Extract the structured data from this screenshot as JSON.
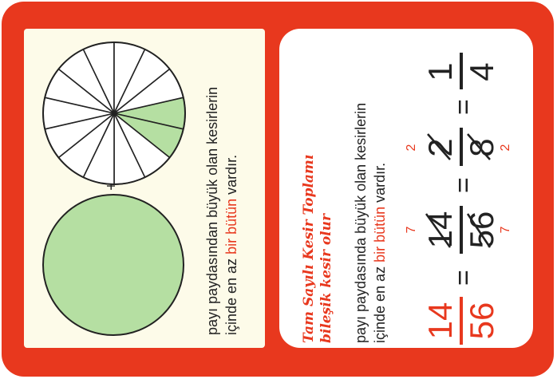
{
  "colors": {
    "frame": "#e8381e",
    "green": "#b5dfa2",
    "red": "#e8381e",
    "text": "#222222"
  },
  "left_panel": {
    "line1": "payı paydasından büyük olan kesirlerin",
    "line2_a": "içinde en az ",
    "line2_b": "bir bütün",
    "line2_c": " vardır.",
    "plus_sign": "+",
    "fraction_pie": {
      "slices_total": 14,
      "slices_shaded": 2
    }
  },
  "right_panel": {
    "title_line1": "Tam Sayılı Kesir Toplamı",
    "title_line2": "bileşik kesir olur",
    "body_line1": "payı paydasında büyük olan kesirlerin",
    "body_line2_a": "içinde en az ",
    "body_line2_b": "bir bütün",
    "body_line2_c": " vardır.",
    "equation": {
      "f1_num": "14",
      "f1_den": "56",
      "f2_num": "14",
      "f2_den": "56",
      "f3_num": "2",
      "f3_den": "8",
      "f4_num": "1",
      "f4_den": "4",
      "divisor_a": "7",
      "divisor_b": "7",
      "divisor_c": "2",
      "divisor_d": "2",
      "equals": "="
    }
  }
}
